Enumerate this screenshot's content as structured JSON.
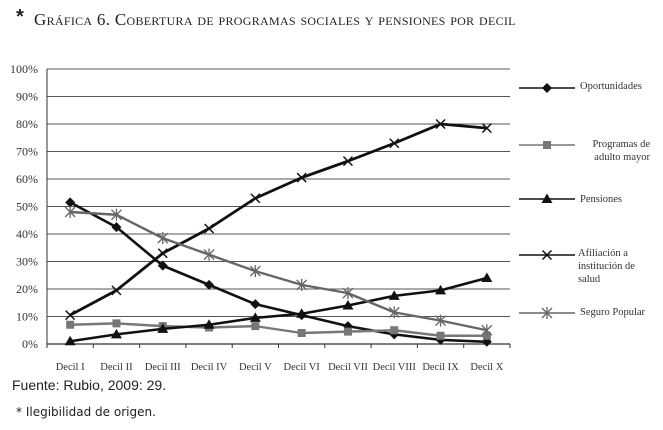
{
  "header": {
    "star": "*",
    "title": "Gráfica 6. Cobertura de programas sociales y pensiones por decil"
  },
  "source": "Fuente: Rubio, 2009: 29.",
  "footnote": "* Ilegibilidad de origen.",
  "legend": {
    "items": [
      {
        "label": "Oportunidades"
      },
      {
        "label": "Programas de adulto mayor"
      },
      {
        "label": "Pensiones"
      },
      {
        "label": "Afiliación a institución de salud"
      },
      {
        "label": "Seguro Popular"
      }
    ]
  },
  "chart_data": {
    "type": "line",
    "title": "Gráfica 6. Cobertura de programas sociales y pensiones por decil",
    "xlabel": "",
    "ylabel": "",
    "ylim": [
      0,
      100
    ],
    "yticks": [
      "0%",
      "10%",
      "20%",
      "30%",
      "40%",
      "50%",
      "60%",
      "70%",
      "80%",
      "90%",
      "100%"
    ],
    "categories": [
      "Decil I",
      "Decil II",
      "Decil III",
      "Decil IV",
      "Decil V",
      "Decil VI",
      "Decil VII",
      "Decil VIII",
      "Decil IX",
      "Decil X"
    ],
    "grid": true,
    "legend_position": "right",
    "series": [
      {
        "name": "Oportunidades",
        "marker": "diamond",
        "color": "#111111",
        "width": 2.6,
        "values": [
          51.5,
          42.5,
          28.5,
          21.5,
          14.5,
          10.5,
          6.5,
          3.5,
          1.5,
          0.8
        ]
      },
      {
        "name": "Programas de adulto mayor",
        "marker": "square",
        "color": "#777777",
        "width": 2.4,
        "values": [
          7,
          7.5,
          6.5,
          6,
          6.5,
          4,
          4.5,
          5,
          3,
          3
        ]
      },
      {
        "name": "Pensiones",
        "marker": "triangle",
        "color": "#111111",
        "width": 2.6,
        "values": [
          1,
          3.5,
          5.5,
          7,
          9.5,
          11,
          14,
          17.5,
          19.5,
          24
        ]
      },
      {
        "name": "Afiliación a institución de salud",
        "marker": "x",
        "color": "#111111",
        "width": 2.8,
        "values": [
          10.5,
          19.5,
          33,
          42,
          53,
          60.5,
          66.5,
          73,
          80,
          78.5
        ]
      },
      {
        "name": "Seguro Popular",
        "marker": "asterisk",
        "color": "#666666",
        "width": 2.4,
        "values": [
          48,
          47,
          38.5,
          32.5,
          26.5,
          21.5,
          18.5,
          11.5,
          8.5,
          5
        ]
      }
    ]
  }
}
